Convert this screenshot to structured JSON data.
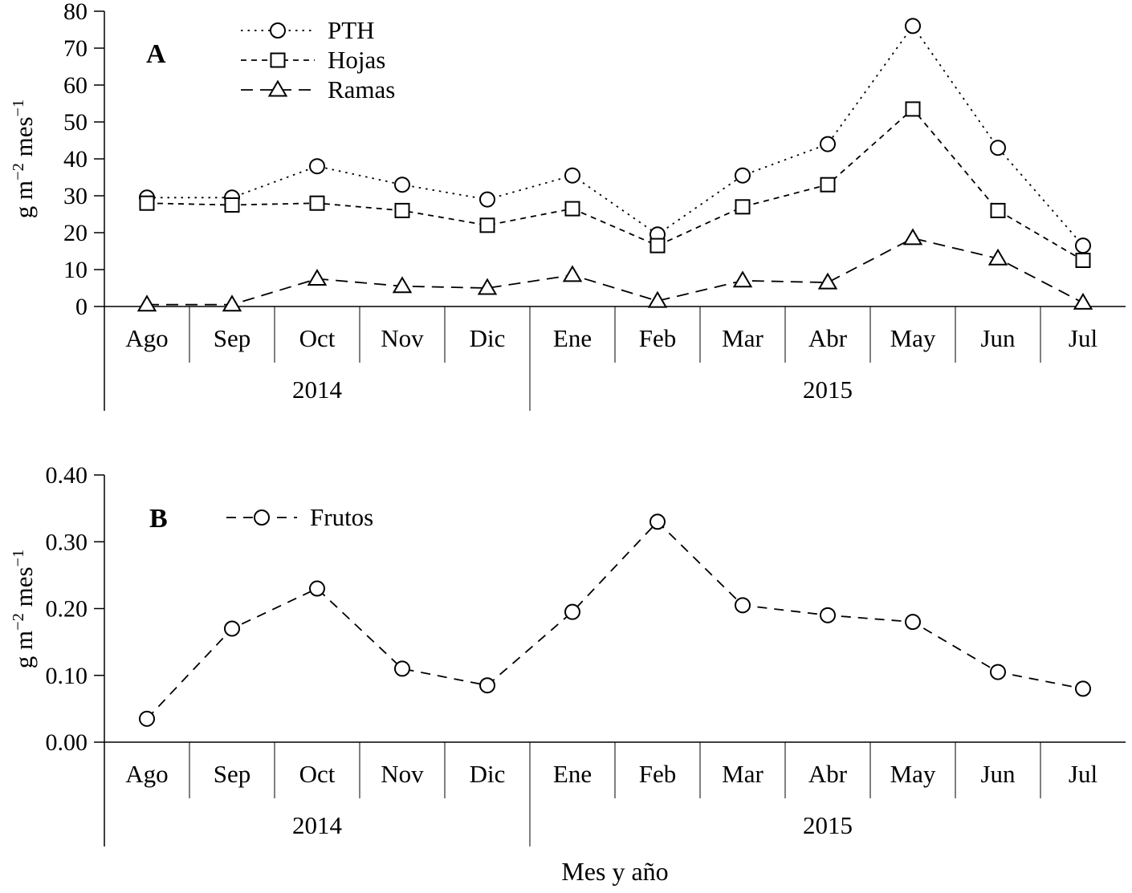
{
  "ylabel_parts": {
    "base1": "g m",
    "sup1": "−2",
    "base2": " mes",
    "sup2": "−1"
  },
  "chart_data": [
    {
      "type": "line",
      "panel_label": "A",
      "title": "",
      "ylabel": "g m⁻² mes⁻¹",
      "xlabel": "",
      "ylim": [
        0,
        80
      ],
      "ytick_values": [
        0,
        10,
        20,
        30,
        40,
        50,
        60,
        70,
        80
      ],
      "ytick_labels": [
        "0",
        "10",
        "20",
        "30",
        "40",
        "50",
        "60",
        "70",
        "80"
      ],
      "categories": [
        "Ago",
        "Sep",
        "Oct",
        "Nov",
        "Dic",
        "Ene",
        "Feb",
        "Mar",
        "Abr",
        "May",
        "Jun",
        "Jul"
      ],
      "year_groups": [
        {
          "label": "2014",
          "start": 0,
          "end": 4
        },
        {
          "label": "2015",
          "start": 5,
          "end": 11
        }
      ],
      "year_split": 5,
      "grid": false,
      "legend_position": "top-left-inside",
      "series": [
        {
          "name": "PTH",
          "marker": "circle",
          "line": "dotted",
          "values": [
            29.5,
            29.5,
            38,
            33,
            29,
            35.5,
            19.5,
            35.5,
            44,
            76,
            43,
            16.5
          ]
        },
        {
          "name": "Hojas",
          "marker": "square",
          "line": "short-dash",
          "values": [
            28,
            27.5,
            28,
            26,
            22,
            26.5,
            16.5,
            27,
            33,
            53.5,
            26,
            12.5
          ]
        },
        {
          "name": "Ramas",
          "marker": "triangle",
          "line": "long-dash",
          "values": [
            0.5,
            0.5,
            7.5,
            5.5,
            5,
            8.5,
            1.5,
            7,
            6.5,
            18.5,
            13,
            1
          ]
        }
      ]
    },
    {
      "type": "line",
      "panel_label": "B",
      "title": "",
      "ylabel": "g m⁻² mes⁻¹",
      "xlabel": "Mes y año",
      "ylim": [
        0,
        0.4
      ],
      "ytick_values": [
        0,
        0.1,
        0.2,
        0.3,
        0.4
      ],
      "ytick_labels": [
        "0.00",
        "0.10",
        "0.20",
        "0.30",
        "0.40"
      ],
      "categories": [
        "Ago",
        "Sep",
        "Oct",
        "Nov",
        "Dic",
        "Ene",
        "Feb",
        "Mar",
        "Abr",
        "May",
        "Jun",
        "Jul"
      ],
      "year_groups": [
        {
          "label": "2014",
          "start": 0,
          "end": 4
        },
        {
          "label": "2015",
          "start": 5,
          "end": 11
        }
      ],
      "year_split": 5,
      "grid": false,
      "legend_position": "top-left-inside",
      "series": [
        {
          "name": "Frutos",
          "marker": "circle",
          "line": "dashed",
          "values": [
            0.035,
            0.17,
            0.23,
            0.11,
            0.085,
            0.195,
            0.33,
            0.205,
            0.19,
            0.18,
            0.105,
            0.08
          ]
        }
      ]
    }
  ]
}
